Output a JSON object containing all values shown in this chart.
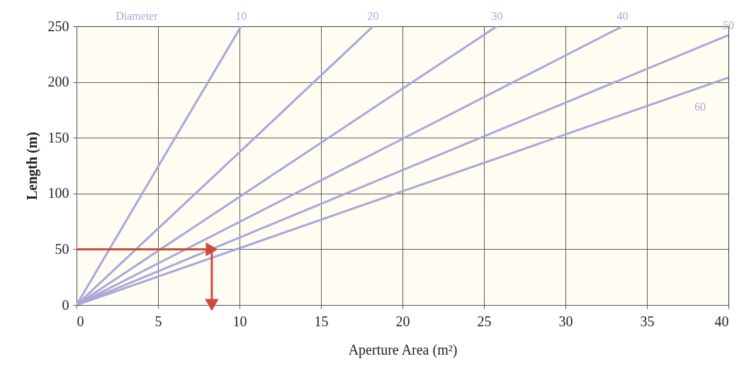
{
  "chart_data": {
    "type": "line",
    "xlabel": "Aperture Area (m²)",
    "ylabel": "Length (m)",
    "legend_title": "Diameter",
    "xlim": [
      0,
      40
    ],
    "ylim": [
      0,
      250
    ],
    "xticks": [
      0,
      5,
      10,
      15,
      20,
      25,
      30,
      35,
      40
    ],
    "yticks": [
      0,
      50,
      100,
      150,
      200,
      250
    ],
    "grid": true,
    "series": [
      {
        "name": "10",
        "color": "#aaa7da",
        "x": [
          0,
          5,
          10.1
        ],
        "values": [
          0,
          124,
          250
        ]
      },
      {
        "name": "20",
        "color": "#aaa7da",
        "x": [
          0,
          10,
          18.2
        ],
        "values": [
          0,
          137,
          250
        ]
      },
      {
        "name": "30",
        "color": "#aaa7da",
        "x": [
          0,
          20,
          25.8
        ],
        "values": [
          0,
          194,
          250
        ]
      },
      {
        "name": "40",
        "color": "#aaa7da",
        "x": [
          0,
          20,
          33.5
        ],
        "values": [
          0,
          149,
          250
        ]
      },
      {
        "name": "50",
        "color": "#aaa7da",
        "x": [
          0,
          20,
          40
        ],
        "values": [
          0,
          121,
          242
        ]
      },
      {
        "name": "60",
        "color": "#aaa7da",
        "x": [
          0,
          20,
          40
        ],
        "values": [
          0,
          102,
          204
        ]
      },
      {
        "color": "#d04a3c",
        "x": [
          0,
          8.3,
          8.3
        ],
        "values": [
          50,
          50,
          0
        ],
        "marker": "triangle"
      }
    ]
  }
}
